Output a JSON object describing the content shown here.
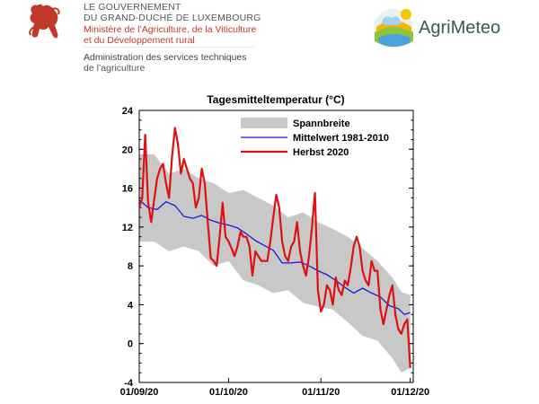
{
  "header": {
    "gov_line1": "LE GOUVERNEMENT",
    "gov_line2": "DU GRAND-DUCHÉ DE LUXEMBOURG",
    "ministry_line1": "Ministère de l’Agriculture, de la Viticulture",
    "ministry_line2": "et du Développement rural",
    "admin_line1": "Administration des services techniques",
    "admin_line2": "de l’agriculture",
    "agrimeteo_label": "AgriMeteo"
  },
  "colors": {
    "band": "#c8c8c8",
    "mean": "#1a1adb",
    "autumn": "#e01010",
    "gov_red": "#c0392b"
  },
  "chart_data": {
    "type": "line",
    "title": "Tagesmitteltemperatur (°C)",
    "xlabel": "",
    "ylabel": "",
    "ylim": [
      -4,
      24
    ],
    "yticks": [
      -4,
      0,
      4,
      8,
      12,
      16,
      20,
      24
    ],
    "x_tick_labels": [
      "01/09/20",
      "01/10/20",
      "01/11/20",
      "01/12/20"
    ],
    "x_tick_days": [
      0,
      30,
      61,
      91
    ],
    "xlim_days": [
      0,
      92
    ],
    "legend_position": "top-right",
    "legend": [
      "Spannbreite",
      "Mittelwert 1981-2010",
      "Herbst 2020"
    ],
    "band_range": {
      "name": "Spannbreite",
      "x_days": [
        0,
        5,
        10,
        15,
        20,
        25,
        30,
        35,
        40,
        45,
        50,
        55,
        60,
        65,
        70,
        75,
        80,
        85,
        88,
        91
      ],
      "upper": [
        19.5,
        19.5,
        17.5,
        18,
        17,
        16.5,
        15.5,
        15.8,
        15,
        14.2,
        13,
        13.5,
        12.5,
        11.8,
        11,
        9.8,
        8.5,
        6.8,
        5.3,
        5
      ],
      "lower": [
        10.5,
        10.5,
        9.5,
        10,
        9.5,
        8,
        8.5,
        6.5,
        6,
        5.2,
        5.5,
        4.2,
        3.8,
        3.5,
        2.2,
        0.8,
        0.3,
        -1.5,
        -3,
        -2.5
      ]
    },
    "series": [
      {
        "name": "Mittelwert 1981-2010",
        "x_days": [
          0,
          3,
          6,
          9,
          12,
          15,
          18,
          21,
          24,
          27,
          30,
          33,
          36,
          39,
          42,
          45,
          48,
          51,
          54,
          57,
          60,
          63,
          66,
          69,
          72,
          75,
          78,
          81,
          84,
          87,
          89,
          91
        ],
        "y": [
          14.8,
          14.0,
          13.8,
          14.6,
          14.2,
          13.1,
          12.9,
          13.2,
          12.7,
          12.4,
          12.2,
          11.9,
          11.3,
          10.6,
          10.1,
          9.6,
          8.3,
          8.3,
          8.4,
          8.0,
          7.5,
          7.1,
          6.5,
          5.8,
          5.2,
          5.7,
          5.2,
          4.8,
          3.9,
          3.6,
          3.0,
          3.2
        ]
      },
      {
        "name": "Herbst 2020",
        "x_days": [
          0,
          1,
          2,
          3,
          4,
          5,
          6,
          7,
          8,
          9,
          10,
          11,
          12,
          13,
          14,
          15,
          16,
          17,
          18,
          19,
          20,
          21,
          22,
          23,
          24,
          25,
          26,
          27,
          28,
          29,
          30,
          31,
          32,
          33,
          34,
          35,
          36,
          37,
          38,
          39,
          40,
          41,
          42,
          43,
          44,
          45,
          46,
          47,
          48,
          49,
          50,
          51,
          52,
          53,
          54,
          55,
          56,
          57,
          58,
          59,
          60,
          61,
          62,
          63,
          64,
          65,
          66,
          67,
          68,
          69,
          70,
          71,
          72,
          73,
          74,
          75,
          76,
          77,
          78,
          79,
          80,
          81,
          82,
          83,
          84,
          85,
          86,
          87,
          88,
          89,
          90,
          91
        ],
        "y": [
          14.0,
          15.0,
          21.5,
          14.5,
          12.5,
          14.8,
          17.0,
          18.0,
          18.5,
          16.5,
          15.0,
          19.2,
          22.2,
          20.5,
          17.5,
          19.0,
          18.0,
          17.0,
          16.5,
          14.0,
          15.0,
          18.0,
          16.5,
          12.5,
          8.8,
          8.5,
          8.0,
          11.0,
          14.5,
          11.0,
          10.5,
          9.8,
          9.0,
          10.0,
          11.5,
          11.0,
          11.0,
          10.0,
          7.0,
          9.5,
          9.0,
          8.5,
          8.5,
          8.5,
          10.5,
          13.0,
          15.3,
          14.0,
          10.5,
          9.0,
          8.5,
          10.0,
          10.5,
          12.5,
          9.5,
          8.0,
          7.0,
          9.0,
          12.0,
          15.5,
          5.5,
          3.3,
          4.0,
          6.0,
          5.5,
          4.0,
          6.8,
          5.5,
          5.0,
          6.5,
          6.0,
          7.8,
          10.0,
          11.0,
          10.0,
          7.5,
          6.5,
          6.0,
          8.5,
          7.5,
          7.5,
          3.5,
          2.0,
          3.5,
          5.0,
          6.0,
          3.0,
          1.5,
          1.0,
          2.0,
          2.5,
          -2.5
        ]
      }
    ]
  }
}
